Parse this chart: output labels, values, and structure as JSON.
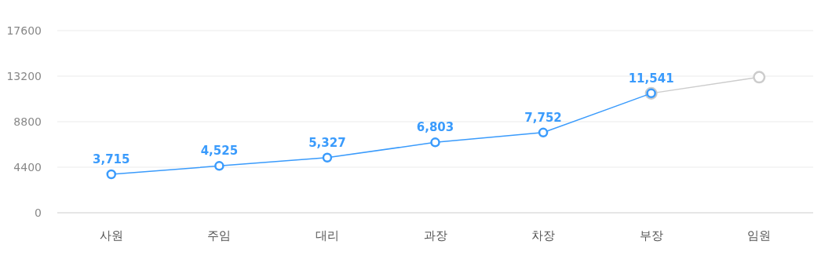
{
  "chart_data": {
    "type": "line",
    "categories": [
      "사원",
      "주임",
      "대리",
      "과장",
      "차장",
      "부장",
      "임원"
    ],
    "series": [
      {
        "color": "#cccccc",
        "values": [
          null,
          null,
          null,
          null,
          null,
          11541,
          13100
        ]
      },
      {
        "color": "#3a9bfc",
        "values": [
          3715,
          4525,
          5327,
          6803,
          7752,
          11541,
          null
        ],
        "value_labels": [
          "3,715",
          "4,525",
          "5,327",
          "6,803",
          "7,752",
          "11,541",
          null
        ]
      }
    ],
    "ylim": [
      0,
      17600
    ],
    "yticks": [
      0,
      4400,
      8800,
      13200,
      17600
    ],
    "grid": "y",
    "marker": "circle",
    "line_style": "solid"
  }
}
